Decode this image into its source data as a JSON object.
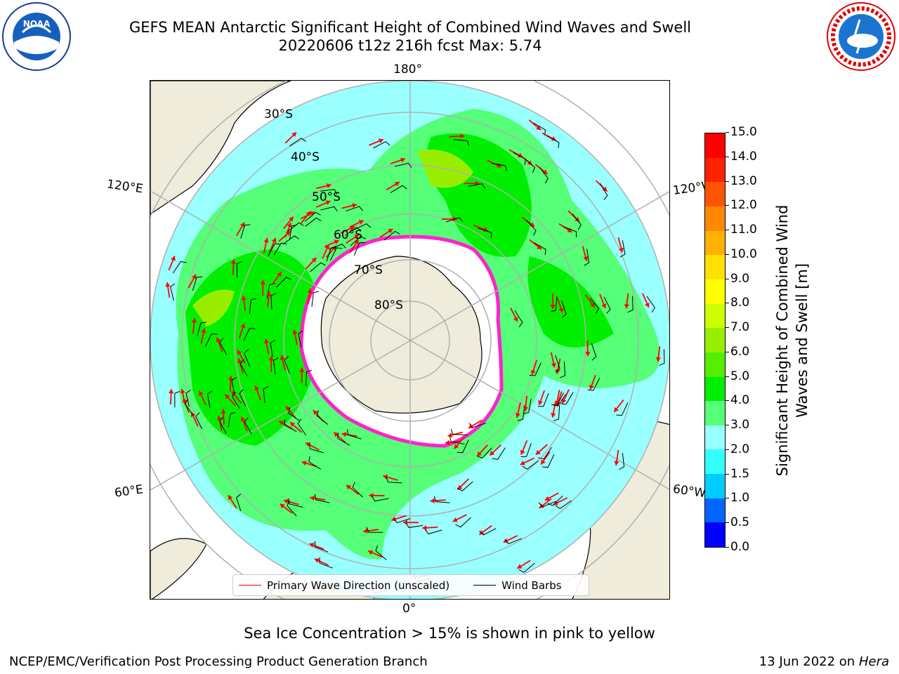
{
  "header": {
    "title_line1": "GEFS MEAN Antarctic Significant Height of Combined Wind Waves and Swell",
    "title_line2": "20220606 t12z 216h fcst   Max: 5.74"
  },
  "logos": {
    "left": "NOAA",
    "right": "NATIONAL WEATHER SERVICE"
  },
  "map": {
    "longitude_labels": {
      "top": "180°",
      "upper_left": "120°E",
      "upper_right": "120°W",
      "lower_left": "60°E",
      "lower_right": "60°W",
      "bottom": "0°"
    },
    "latitude_labels": [
      "30°S",
      "40°S",
      "50°S",
      "60°S",
      "70°S",
      "80°S"
    ]
  },
  "legend": {
    "wave_label": "Primary Wave Direction (unscaled)",
    "barb_label": "Wind Barbs",
    "wave_color": "#ff0000",
    "barb_color": "#000000"
  },
  "colorbar": {
    "label": "Significant Height of Combined Wind Waves and Swell [m]",
    "ticks": [
      "0.0",
      "0.5",
      "1.0",
      "1.5",
      "2.0",
      "3.0",
      "4.0",
      "5.0",
      "6.0",
      "7.0",
      "8.0",
      "9.0",
      "10.0",
      "11.0",
      "12.0",
      "13.0",
      "14.0",
      "15.0"
    ],
    "colors": [
      "#0000ff",
      "#0066ff",
      "#00ccff",
      "#33ffff",
      "#99ffff",
      "#55ff77",
      "#00ee00",
      "#55ee00",
      "#99ee00",
      "#ccff00",
      "#ffff00",
      "#ffe000",
      "#ffb000",
      "#ff8800",
      "#ff5500",
      "#ff2200",
      "#ff0000"
    ]
  },
  "footer": {
    "note": "Sea Ice Concentration > 15% is shown in pink to yellow",
    "left": "NCEP/EMC/Verification Post Processing Product Generation Branch",
    "right_date": "13 Jun 2022 on",
    "right_host": "Hera"
  }
}
